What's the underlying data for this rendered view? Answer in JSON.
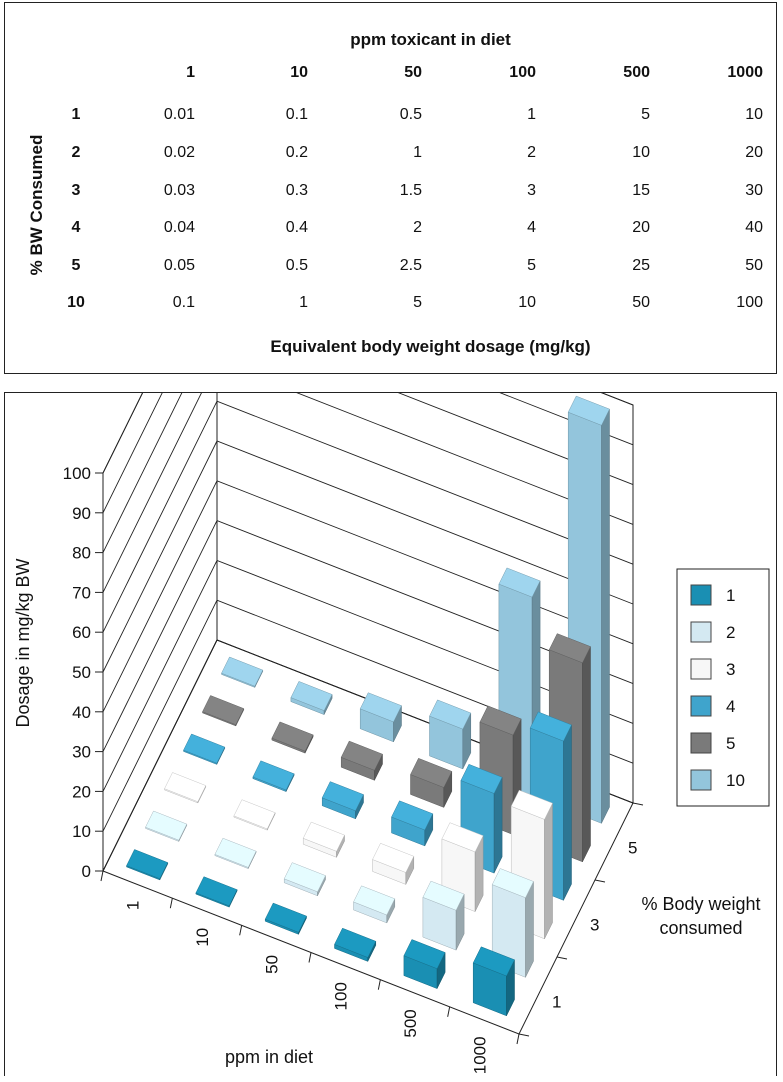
{
  "table": {
    "title": "ppm toxicant in diet",
    "row_axis_label": "% BW Consumed",
    "footer": "Equivalent body weight dosage (mg/kg)",
    "columns": [
      "1",
      "10",
      "50",
      "100",
      "500",
      "1000"
    ],
    "rows": [
      {
        "label": "1",
        "values": [
          "0.01",
          "0.1",
          "0.5",
          "1",
          "5",
          "10"
        ]
      },
      {
        "label": "2",
        "values": [
          "0.02",
          "0.2",
          "1",
          "2",
          "10",
          "20"
        ]
      },
      {
        "label": "3",
        "values": [
          "0.03",
          "0.3",
          "1.5",
          "3",
          "15",
          "30"
        ]
      },
      {
        "label": "4",
        "values": [
          "0.04",
          "0.4",
          "2",
          "4",
          "20",
          "40"
        ]
      },
      {
        "label": "5",
        "values": [
          "0.05",
          "0.5",
          "2.5",
          "5",
          "25",
          "50"
        ]
      },
      {
        "label": "10",
        "values": [
          "0.1",
          "1",
          "5",
          "10",
          "50",
          "100"
        ]
      }
    ]
  },
  "chart_data": {
    "type": "bar",
    "categories": [
      "1",
      "10",
      "50",
      "100",
      "500",
      "1000"
    ],
    "series": [
      {
        "name": "1",
        "color": "#1a8fb3",
        "values": [
          0.01,
          0.1,
          0.5,
          1,
          5,
          10
        ]
      },
      {
        "name": "2",
        "color": "#d4e9f2",
        "values": [
          0.02,
          0.2,
          1,
          2,
          10,
          20
        ]
      },
      {
        "name": "3",
        "color": "#f7f7f7",
        "values": [
          0.03,
          0.3,
          1.5,
          3,
          15,
          30
        ]
      },
      {
        "name": "4",
        "color": "#3fa4cc",
        "values": [
          0.04,
          0.4,
          2,
          4,
          20,
          40
        ]
      },
      {
        "name": "5",
        "color": "#7a7a7a",
        "values": [
          0.05,
          0.5,
          2.5,
          5,
          25,
          50
        ]
      },
      {
        "name": "10",
        "color": "#93c5dc",
        "values": [
          0.1,
          1,
          5,
          10,
          50,
          100
        ]
      }
    ],
    "ylabel": "Dosage in mg/kg BW",
    "xlabel": "ppm in diet",
    "zlabel_line1": "% Body weight",
    "zlabel_line2": "consumed",
    "ylim": [
      0,
      100
    ],
    "yticks": [
      "0",
      "10",
      "20",
      "30",
      "40",
      "50",
      "60",
      "70",
      "80",
      "90",
      "100"
    ],
    "zticks": [
      "1",
      "3",
      "5"
    ],
    "legend_position": "right",
    "grid": true
  }
}
